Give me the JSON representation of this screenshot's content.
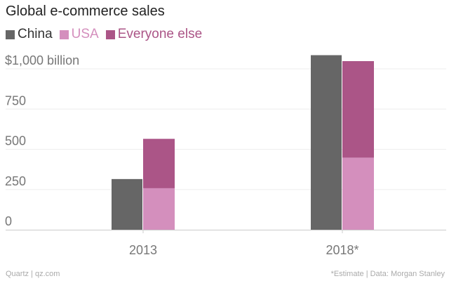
{
  "header": {
    "title": "Global e-commerce sales"
  },
  "legend": [
    {
      "label": "China",
      "color": "#666666",
      "text_color": "#333333"
    },
    {
      "label": "USA",
      "color": "#d48fbd",
      "text_color": "#d48fbd"
    },
    {
      "label": "Everyone else",
      "color": "#ab5587",
      "text_color": "#ab5587"
    }
  ],
  "footer": {
    "source_left": "Quartz | qz.com",
    "source_right": "*Estimate | Data: Morgan Stanley"
  },
  "chart_data": {
    "type": "bar",
    "title": "Global e-commerce sales",
    "categories": [
      "2013",
      "2018*"
    ],
    "series": [
      {
        "name": "China",
        "values": [
          315,
          1085
        ],
        "stack": "china",
        "color": "#666666"
      },
      {
        "name": "USA",
        "values": [
          258,
          448
        ],
        "stack": "rest",
        "color": "#d48fbd"
      },
      {
        "name": "Everyone else",
        "values": [
          307,
          600
        ],
        "stack": "rest",
        "color": "#ab5587"
      }
    ],
    "ylim": [
      0,
      1000
    ],
    "yticks": [
      0,
      250,
      500,
      750,
      1000
    ],
    "ytick_labels": [
      "0",
      "250",
      "500",
      "750",
      "$1,000 billion"
    ],
    "grid": true,
    "legend_position": "top-left"
  }
}
